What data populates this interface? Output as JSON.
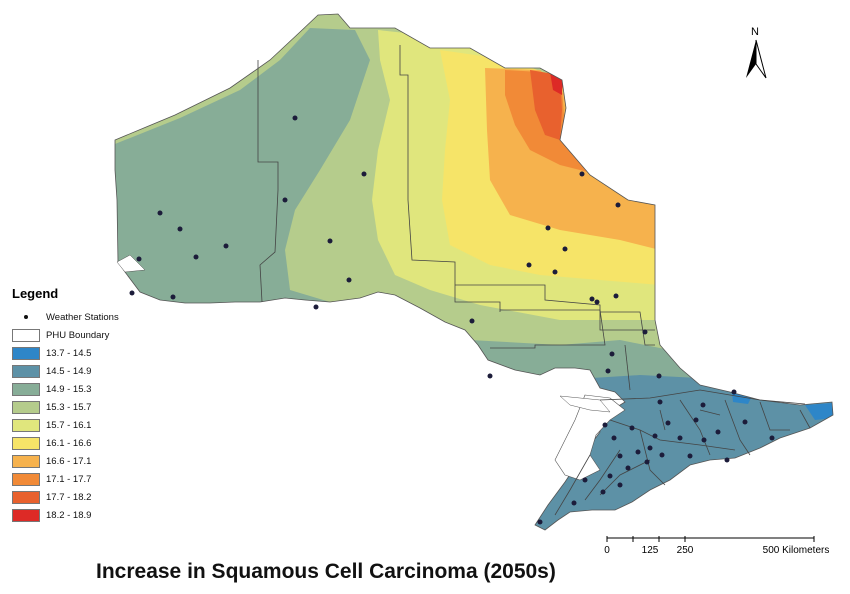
{
  "title": "Increase in Squamous Cell Carcinoma (2050s)",
  "north_label": "N",
  "legend": {
    "title": "Legend",
    "stations_label": "Weather Stations",
    "boundary_label": "PHU Boundary",
    "classes": [
      {
        "label": "13.7 - 14.5",
        "color": "#2e86c8"
      },
      {
        "label": "14.5 - 14.9",
        "color": "#5d91a6"
      },
      {
        "label": "14.9 - 15.3",
        "color": "#87ad97"
      },
      {
        "label": "15.3 - 15.7",
        "color": "#b5cc8c"
      },
      {
        "label": "15.7 - 16.1",
        "color": "#e0e67d"
      },
      {
        "label": "16.1 - 16.6",
        "color": "#f6e468"
      },
      {
        "label": "16.6 - 17.1",
        "color": "#f6b24d"
      },
      {
        "label": "17.1 - 17.7",
        "color": "#f18a37"
      },
      {
        "label": "17.7 - 18.2",
        "color": "#e8612e"
      },
      {
        "label": "18.2 - 18.9",
        "color": "#dd2a26"
      }
    ]
  },
  "scale_bar": {
    "ticks": [
      "0",
      "125",
      "250",
      "500 Kilometers"
    ]
  }
}
